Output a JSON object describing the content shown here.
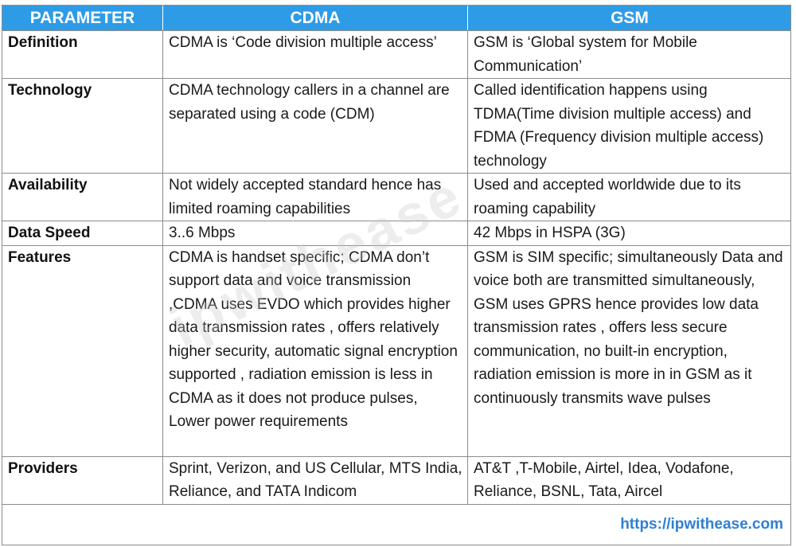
{
  "table": {
    "headers": [
      "PARAMETER",
      "CDMA",
      "GSM"
    ],
    "rows": [
      {
        "parameter": "Definition",
        "cdma": "CDMA is ‘Code division multiple access’",
        "gsm": "GSM is ‘Global system for Mobile Communication’"
      },
      {
        "parameter": "Technology",
        "cdma": "CDMA technology callers in a channel are separated using a code (CDM)",
        "gsm": "Called identification happens using TDMA(Time division multiple access) and FDMA (Frequency division multiple access) technology"
      },
      {
        "parameter": "Availability",
        "cdma": "Not widely accepted standard hence has limited roaming capabilities",
        "gsm": "Used and accepted worldwide due to its roaming capability"
      },
      {
        "parameter": "Data Speed",
        "cdma": "3..6 Mbps",
        "gsm": "42 Mbps in HSPA (3G)"
      },
      {
        "parameter": "Features",
        "cdma": "CDMA is handset specific; CDMA don’t support data and voice transmission ,CDMA uses EVDO which provides higher data transmission rates , offers relatively higher security, automatic signal encryption supported , radiation emission is less in CDMA as it does not produce pulses, Lower power requirements",
        "gsm": "GSM is SIM specific; simultaneously Data and voice both are transmitted simultaneously, GSM uses GPRS hence provides low data transmission rates , offers less secure communication, no built-in encryption, radiation emission is more in in GSM as it continuously transmits wave pulses"
      },
      {
        "parameter": "Providers",
        "cdma": "Sprint, Verizon, and US Cellular, MTS India, Reliance, and TATA Indicom",
        "gsm": "AT&T ,T-Mobile, Airtel, Idea, Vodafone, Reliance, BSNL, Tata, Aircel"
      }
    ]
  },
  "footer": {
    "link_text": "https://ipwithease.com"
  },
  "watermark": {
    "text": "ipwithease"
  },
  "colors": {
    "header_bg": "#2e9be7",
    "header_text": "#ffffff",
    "link": "#2e7fd4",
    "border": "#8c8c8c"
  }
}
